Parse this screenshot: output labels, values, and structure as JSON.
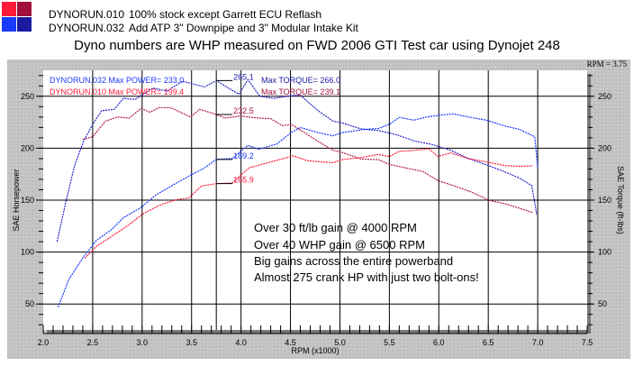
{
  "header": {
    "runs": [
      {
        "name": "DYNORUN.010",
        "desc": "100% stock except Garrett ECU Reflash",
        "color_hp": "#ff1a3a",
        "color_tq": "#a0103a"
      },
      {
        "name": "DYNORUN.032",
        "desc": "Add ATP 3\" Downpipe and 3\" Modular Intake Kit",
        "color_hp": "#1a3aff",
        "color_tq": "#1a1aa0"
      }
    ]
  },
  "cursor_readout": "RPM = 3.75",
  "info": {
    "run032_label": "DYNORUN.032  Max POWER= 233.0",
    "run032_torque": "Max TORQUE= 266.0",
    "run010_label": "DYNORUN.010  Max POWER= 199.4",
    "run010_torque": "Max TORQUE= 239.1"
  },
  "cursor_values": [
    "265.1",
    "232.5",
    "189.2",
    "165.9"
  ],
  "annotations": [
    "Over 30 ft/lb gain @ 4000 RPM",
    "Over 40 WHP gain @ 6500 RPM",
    "Big gains across the entire powerband",
    "Almost 275 crank HP with just two bolt-ons!"
  ],
  "chart_data": {
    "type": "line",
    "title": "Dyno numbers are WHP measured on FWD 2006 GTI Test car using Dynojet 248",
    "xlabel": "RPM (x1000)",
    "ylabel": "SAE Horsepower",
    "y2label": "SAE Torque (ft-lbs)",
    "xlim": [
      2.0,
      7.5
    ],
    "ylim": [
      25,
      275
    ],
    "xticks": [
      "2.0",
      "2.5",
      "3.0",
      "3.5",
      "4.0",
      "4.5",
      "5.0",
      "5.5",
      "6.0",
      "6.5",
      "7.0",
      "7.5"
    ],
    "yticks": [
      "50",
      "100",
      "150",
      "200",
      "250"
    ],
    "cursor_x": 3.75,
    "grid": true,
    "series": [
      {
        "name": "DYNORUN.032 Torque",
        "color": "#2424c8",
        "x": [
          2.14,
          2.23,
          2.32,
          2.41,
          2.5,
          2.59,
          2.72,
          2.81,
          2.93,
          3.11,
          3.25,
          3.41,
          3.63,
          3.75,
          3.87,
          3.98,
          4.07,
          4.19,
          4.33,
          4.51,
          4.6,
          4.78,
          4.93,
          5.02,
          5.21,
          5.39,
          5.57,
          5.75,
          5.93,
          6.12,
          6.3,
          6.48,
          6.66,
          6.82,
          6.94,
          6.99
        ],
        "y": [
          110,
          149,
          184,
          207,
          223,
          236,
          237.5,
          248,
          247,
          258,
          255,
          264.5,
          259,
          265.1,
          258,
          252,
          266,
          250,
          248,
          250.6,
          251,
          236,
          226,
          224.5,
          218.7,
          217,
          213,
          207,
          203.6,
          198,
          190,
          184,
          177.5,
          171,
          164,
          136
        ]
      },
      {
        "name": "DYNORUN.032 Power",
        "color": "#1a3aff",
        "x": [
          2.15,
          2.26,
          2.41,
          2.54,
          2.69,
          2.81,
          2.99,
          3.14,
          3.32,
          3.51,
          3.63,
          3.75,
          3.91,
          4.07,
          4.18,
          4.36,
          4.51,
          4.6,
          4.78,
          4.93,
          5.02,
          5.24,
          5.39,
          5.5,
          5.6,
          5.75,
          5.88,
          6.03,
          6.15,
          6.3,
          6.48,
          6.66,
          6.82,
          6.97,
          7.0
        ],
        "y": [
          47,
          74,
          95.5,
          111.4,
          121.6,
          133,
          143,
          155,
          165,
          175,
          181,
          189.2,
          190,
          202.7,
          199,
          204,
          215,
          220,
          215,
          212,
          215,
          218,
          219,
          223,
          229.7,
          227,
          230,
          232,
          233,
          230,
          227,
          221.6,
          218,
          211,
          181
        ]
      },
      {
        "name": "DYNORUN.010 Torque",
        "color": "#b0184a",
        "x": [
          2.4,
          2.5,
          2.63,
          2.75,
          2.87,
          2.99,
          3.08,
          3.17,
          3.29,
          3.49,
          3.58,
          3.75,
          3.84,
          3.99,
          4.18,
          4.3,
          4.42,
          4.51,
          4.63,
          4.78,
          4.93,
          5.02,
          5.21,
          5.39,
          5.5,
          5.6,
          5.84,
          5.99,
          6.15,
          6.33,
          6.51,
          6.66,
          6.82,
          6.95
        ],
        "y": [
          208.5,
          211,
          226,
          230,
          229,
          238.4,
          234.6,
          239.1,
          239,
          230,
          237.5,
          232.5,
          229,
          231,
          229,
          228.5,
          221.6,
          223,
          215.7,
          206.5,
          198,
          196,
          189.7,
          189,
          184.4,
          182.4,
          177.5,
          168.8,
          164,
          157.8,
          149.7,
          146.8,
          142,
          138
        ]
      },
      {
        "name": "DYNORUN.010 Power",
        "color": "#ff1a3a",
        "x": [
          2.42,
          2.54,
          2.69,
          2.84,
          3.02,
          3.2,
          3.35,
          3.47,
          3.6,
          3.75,
          3.91,
          4.08,
          4.3,
          4.53,
          4.67,
          4.81,
          4.93,
          5.02,
          5.21,
          5.39,
          5.5,
          5.6,
          5.75,
          5.9,
          5.99,
          6.12,
          6.3,
          6.48,
          6.66,
          6.82,
          6.95
        ],
        "y": [
          94,
          105.6,
          115,
          124.4,
          137.5,
          146,
          150.5,
          152,
          163.6,
          165.9,
          166.5,
          181,
          186.8,
          192.6,
          188,
          186.8,
          186,
          189,
          191,
          194,
          192,
          197,
          198,
          199.4,
          192,
          195.5,
          190,
          186.8,
          183.3,
          182.5,
          183
        ]
      }
    ]
  }
}
